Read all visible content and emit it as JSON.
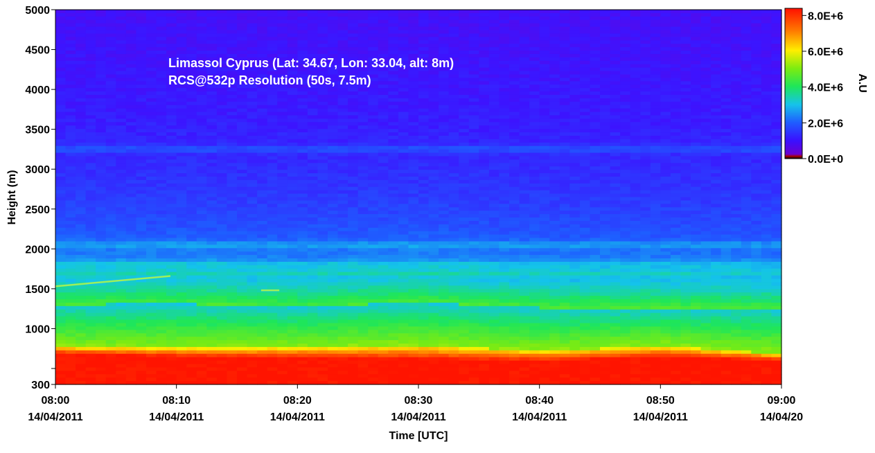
{
  "chart_data": {
    "type": "heatmap",
    "title": "Limassol Cyprus (Lat: 34.67, Lon: 33.04, alt: 8m)",
    "subtitle": "RCS@532p Resolution (50s, 7.5m)",
    "xlabel": "Time [UTC]",
    "ylabel": "Height (m)",
    "colorbar_label": "A.U",
    "x_ticks": [
      {
        "time": "08:00",
        "date": "14/04/2011"
      },
      {
        "time": "08:10",
        "date": "14/04/2011"
      },
      {
        "time": "08:20",
        "date": "14/04/2011"
      },
      {
        "time": "08:30",
        "date": "14/04/2011"
      },
      {
        "time": "08:40",
        "date": "14/04/2011"
      },
      {
        "time": "08:50",
        "date": "14/04/2011"
      },
      {
        "time": "09:00",
        "date": "14/04/20"
      }
    ],
    "xlim_minutes": [
      0,
      60
    ],
    "y_ticks": [
      "300",
      "",
      "1000",
      "1500",
      "2000",
      "2500",
      "3000",
      "3500",
      "4000",
      "4500",
      "5000"
    ],
    "y_tick_values": [
      300,
      500,
      1000,
      1500,
      2000,
      2500,
      3000,
      3500,
      4000,
      4500,
      5000
    ],
    "ylim": [
      300,
      5000
    ],
    "colorbar_ticks": [
      "0.0E+0",
      "2.0E+6",
      "4.0E+6",
      "6.0E+6",
      "8.0E+6"
    ],
    "colorbar_values": [
      0,
      2000000,
      4000000,
      6000000,
      8000000
    ],
    "colorbar_range": [
      0,
      8400000
    ],
    "boundary_layer": {
      "minutes": [
        0,
        10,
        20,
        30,
        40,
        50,
        60
      ],
      "saturated_top_m": [
        690,
        650,
        640,
        620,
        600,
        650,
        600
      ],
      "yellow_top_m": [
        770,
        760,
        760,
        790,
        720,
        780,
        680
      ],
      "green_top_m": [
        1300,
        1310,
        1270,
        1330,
        1260,
        1260,
        1240
      ]
    },
    "aerosol_layers_m": [
      1700,
      1800,
      2050,
      3250
    ],
    "thin_layer_segments": [
      {
        "minutes": [
          0,
          9.5
        ],
        "height_m": [
          1530,
          1660
        ]
      },
      {
        "minutes": [
          17,
          18.5
        ],
        "height_m": [
          1480,
          1480
        ]
      }
    ]
  }
}
